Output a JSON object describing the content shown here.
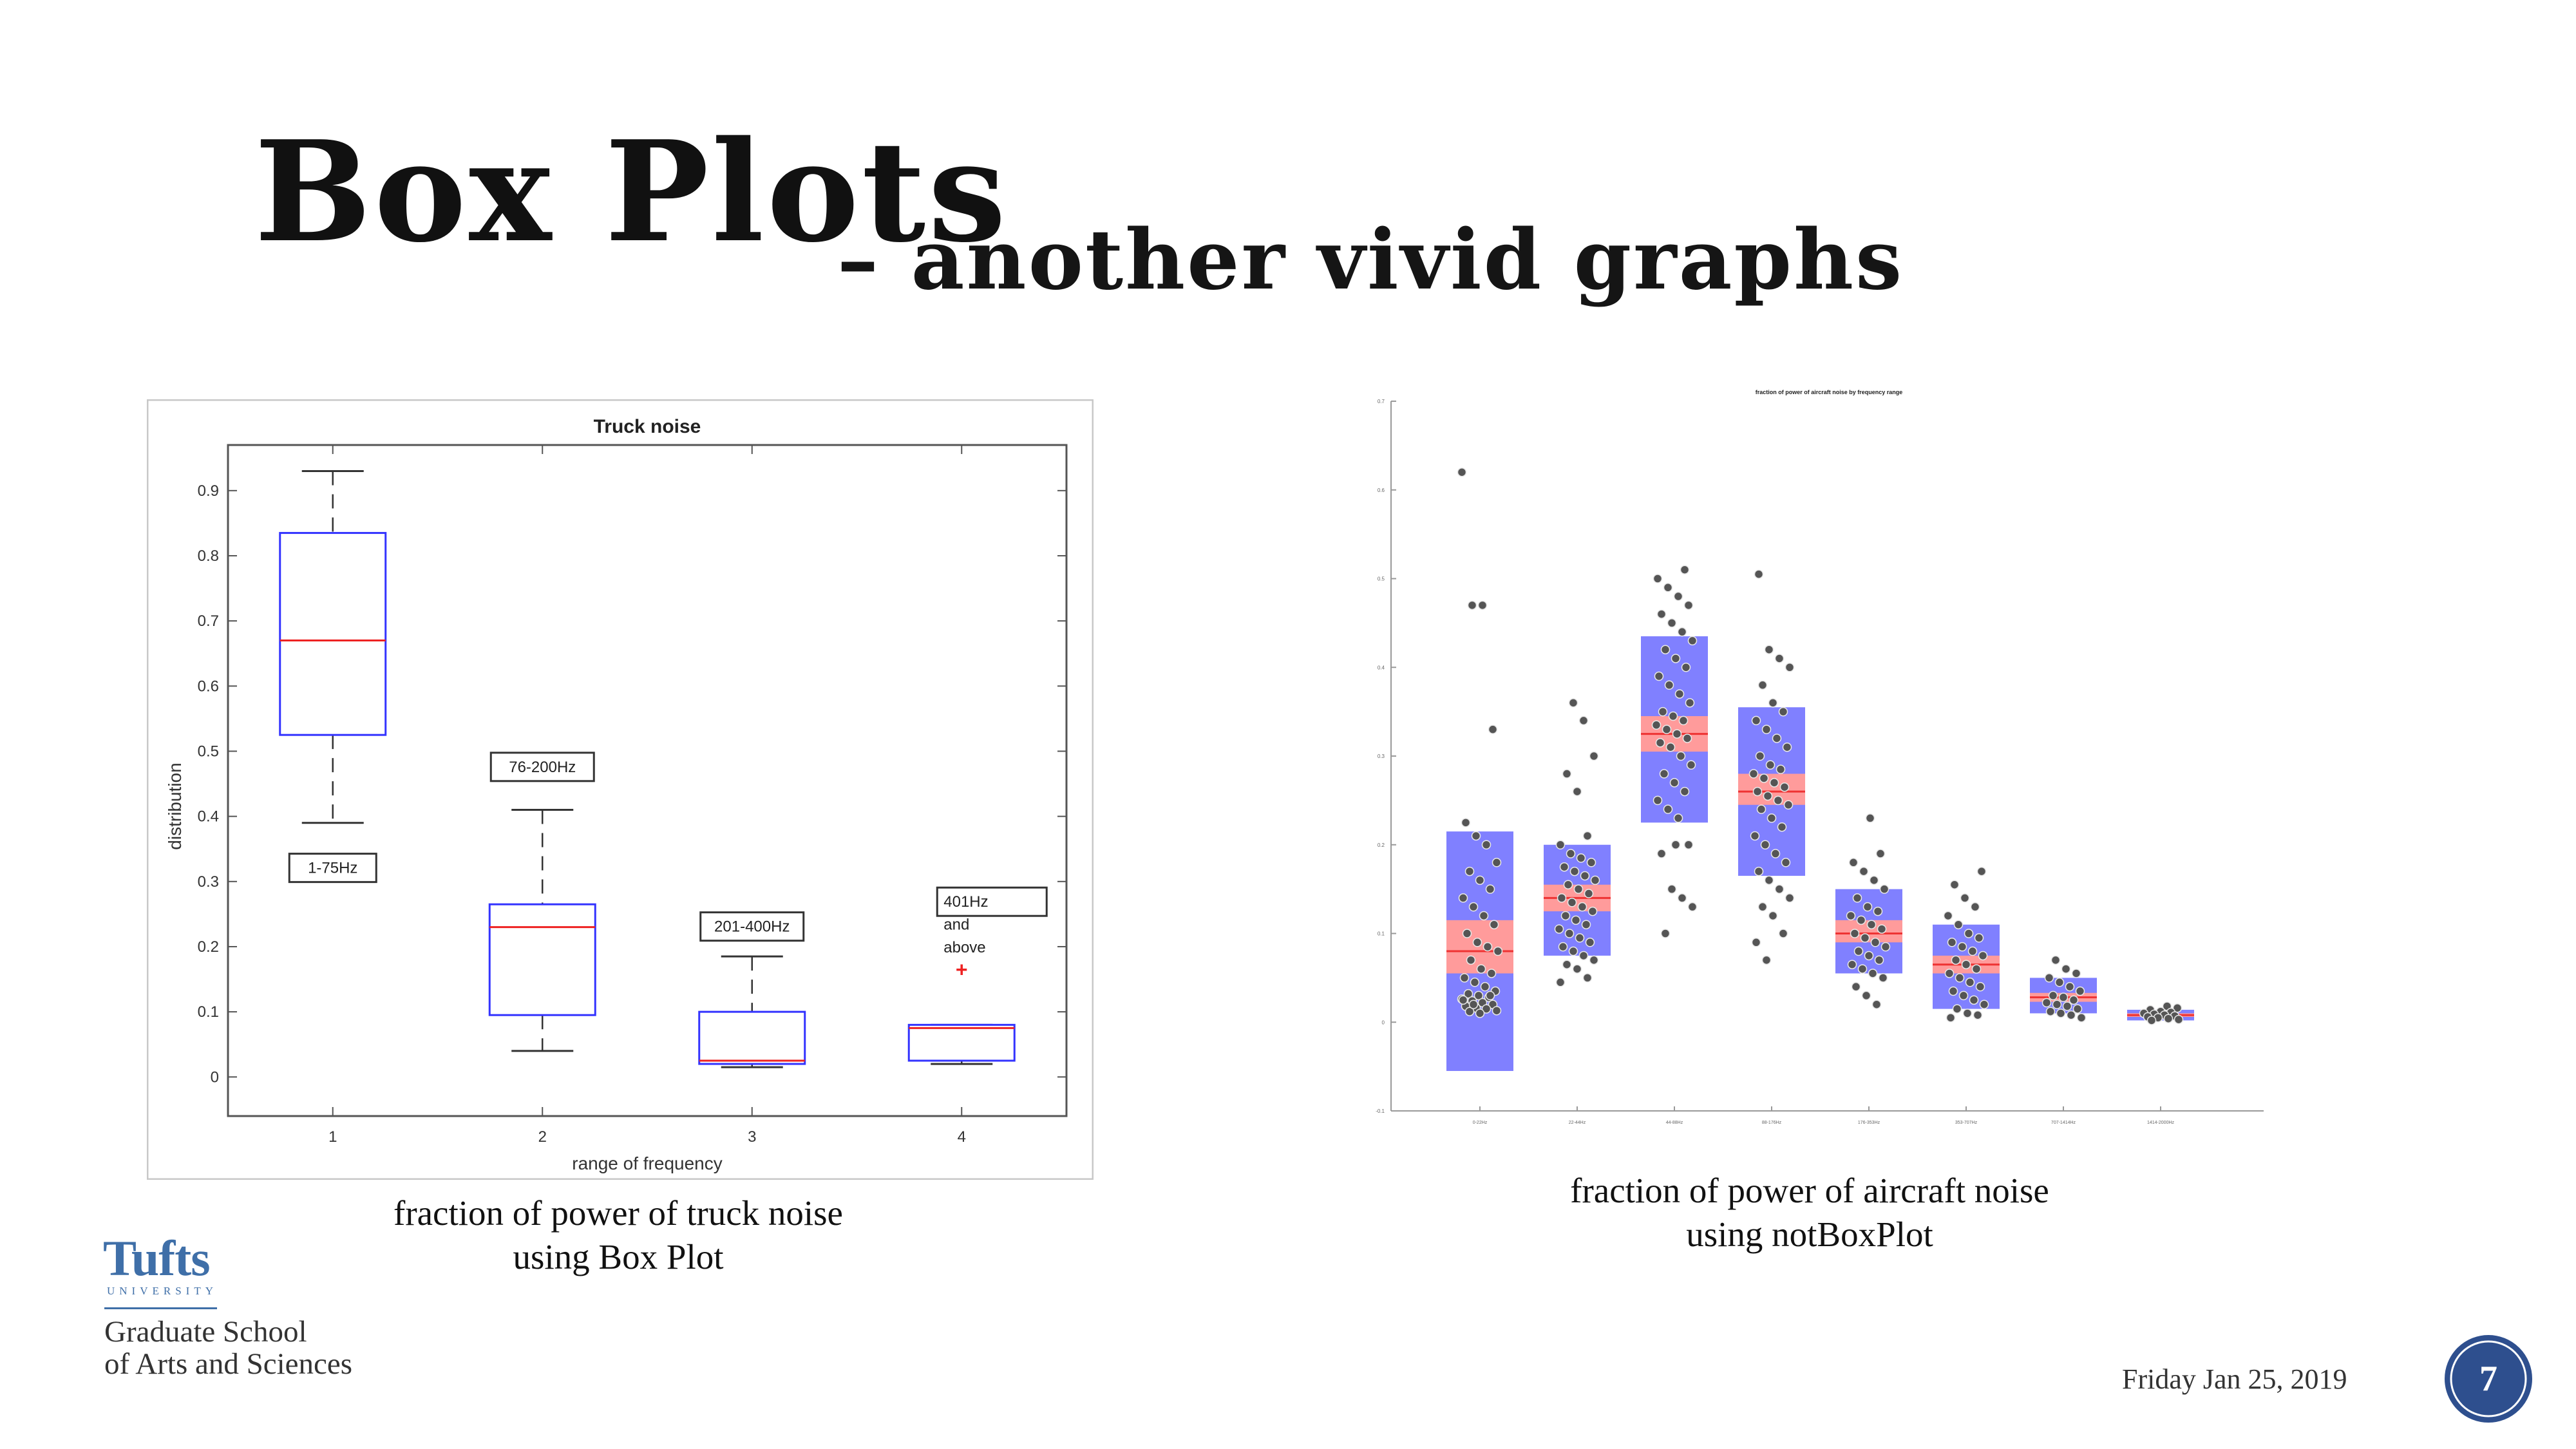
{
  "slide": {
    "title": "Box Plots",
    "subtitle": "– another vivid graphs",
    "footer_date": "Friday Jan 25, 2019",
    "page_number": "7",
    "logo_word": "Tufts",
    "logo_university": "UNIVERSITY",
    "school_line1": "Graduate School",
    "school_line2": "of Arts and Sciences",
    "left_caption_line1": "fraction of power of truck noise",
    "left_caption_line2": "using Box Plot",
    "right_caption_line1": "fraction of power of aircraft noise",
    "right_caption_line2": "using notBoxPlot"
  },
  "chart_data": [
    {
      "type": "box",
      "title": "Truck noise",
      "xlabel": "range of frequency",
      "ylabel": "distribution",
      "categories": [
        "1",
        "2",
        "3",
        "4"
      ],
      "ylim": [
        -0.06,
        0.97
      ],
      "yticks": [
        "0",
        "0.1",
        "0.2",
        "0.3",
        "0.4",
        "0.5",
        "0.6",
        "0.7",
        "0.8",
        "0.9"
      ],
      "grid": false,
      "colors": {
        "box": "#3333ff",
        "median": "#ee2222",
        "outlier": "#ee2222"
      },
      "boxes": [
        {
          "category": "1",
          "lower_whisker": 0.39,
          "q1": 0.525,
          "median": 0.67,
          "q3": 0.835,
          "upper_whisker": 0.93,
          "outliers": []
        },
        {
          "category": "2",
          "lower_whisker": 0.04,
          "q1": 0.095,
          "median": 0.23,
          "q3": 0.265,
          "upper_whisker": 0.41,
          "outliers": []
        },
        {
          "category": "3",
          "lower_whisker": 0.015,
          "q1": 0.02,
          "median": 0.025,
          "q3": 0.1,
          "upper_whisker": 0.185,
          "outliers": []
        },
        {
          "category": "4",
          "lower_whisker": 0.02,
          "q1": 0.025,
          "median": 0.075,
          "q3": 0.08,
          "upper_whisker": 0.08,
          "outliers": [
            0.165
          ]
        }
      ],
      "annotations": [
        {
          "text": "1-75Hz",
          "x": 1,
          "y": 0.315
        },
        {
          "text": "76-200Hz",
          "x": 2,
          "y": 0.47
        },
        {
          "text": "201-400Hz",
          "x": 3,
          "y": 0.225
        },
        {
          "text": "401Hz",
          "x": 4,
          "y": 0.265
        },
        {
          "text": "and",
          "x": 4,
          "y": 0.23
        },
        {
          "text": "above",
          "x": 4,
          "y": 0.195
        }
      ]
    },
    {
      "type": "scatter",
      "title": "fraction of power of aircraft noise by frequency range",
      "xlabel": "",
      "ylabel": "",
      "ylim": [
        -0.1,
        0.7
      ],
      "yticks": [
        "-0.1",
        "0",
        "0.1",
        "0.2",
        "0.3",
        "0.4",
        "0.5",
        "0.6",
        "0.7"
      ],
      "categories": [
        "0-22Hz",
        "22-44Hz",
        "44-88Hz",
        "88-176Hz",
        "176-353Hz",
        "353-707Hz",
        "707-1414Hz",
        "1414-2000Hz"
      ],
      "colors": {
        "sd_band": "#8080ff",
        "sem_band": "#ff9b9b",
        "mean": "#ee3333",
        "points": "#555555"
      },
      "groups": [
        {
          "mean": 0.08,
          "sem_low": 0.055,
          "sem_high": 0.115,
          "sd_low": -0.055,
          "sd_high": 0.215,
          "points": [
            0.62,
            0.47,
            0.47,
            0.33,
            0.225,
            0.21,
            0.2,
            0.18,
            0.17,
            0.16,
            0.15,
            0.14,
            0.13,
            0.12,
            0.11,
            0.1,
            0.09,
            0.085,
            0.08,
            0.07,
            0.06,
            0.055,
            0.05,
            0.045,
            0.04,
            0.035,
            0.032,
            0.03,
            0.028,
            0.026,
            0.024,
            0.022,
            0.02,
            0.018,
            0.016,
            0.015,
            0.013,
            0.012,
            0.01,
            0.03,
            0.025,
            0.02
          ]
        },
        {
          "mean": 0.14,
          "sem_low": 0.125,
          "sem_high": 0.155,
          "sd_low": 0.075,
          "sd_high": 0.2,
          "points": [
            0.36,
            0.34,
            0.3,
            0.28,
            0.26,
            0.21,
            0.2,
            0.19,
            0.185,
            0.18,
            0.175,
            0.17,
            0.165,
            0.16,
            0.155,
            0.15,
            0.145,
            0.14,
            0.135,
            0.13,
            0.125,
            0.12,
            0.115,
            0.11,
            0.105,
            0.1,
            0.095,
            0.09,
            0.085,
            0.08,
            0.075,
            0.07,
            0.065,
            0.06,
            0.05,
            0.045
          ]
        },
        {
          "mean": 0.325,
          "sem_low": 0.305,
          "sem_high": 0.345,
          "sd_low": 0.225,
          "sd_high": 0.435,
          "points": [
            0.51,
            0.5,
            0.49,
            0.48,
            0.47,
            0.46,
            0.45,
            0.44,
            0.43,
            0.42,
            0.41,
            0.4,
            0.39,
            0.38,
            0.37,
            0.36,
            0.35,
            0.345,
            0.34,
            0.335,
            0.33,
            0.325,
            0.32,
            0.315,
            0.31,
            0.3,
            0.29,
            0.28,
            0.27,
            0.26,
            0.25,
            0.24,
            0.23,
            0.2,
            0.19,
            0.15,
            0.14,
            0.13,
            0.1,
            0.2
          ]
        },
        {
          "mean": 0.26,
          "sem_low": 0.245,
          "sem_high": 0.28,
          "sd_low": 0.165,
          "sd_high": 0.355,
          "points": [
            0.505,
            0.42,
            0.41,
            0.4,
            0.38,
            0.36,
            0.35,
            0.34,
            0.33,
            0.32,
            0.31,
            0.3,
            0.29,
            0.285,
            0.28,
            0.275,
            0.27,
            0.265,
            0.26,
            0.255,
            0.25,
            0.245,
            0.24,
            0.23,
            0.22,
            0.21,
            0.2,
            0.19,
            0.18,
            0.17,
            0.16,
            0.15,
            0.14,
            0.13,
            0.12,
            0.1,
            0.09,
            0.07
          ]
        },
        {
          "mean": 0.1,
          "sem_low": 0.09,
          "sem_high": 0.115,
          "sd_low": 0.055,
          "sd_high": 0.15,
          "points": [
            0.23,
            0.19,
            0.18,
            0.17,
            0.16,
            0.15,
            0.14,
            0.13,
            0.125,
            0.12,
            0.115,
            0.11,
            0.105,
            0.1,
            0.095,
            0.09,
            0.085,
            0.08,
            0.075,
            0.07,
            0.065,
            0.06,
            0.055,
            0.05,
            0.04,
            0.03,
            0.02
          ]
        },
        {
          "mean": 0.065,
          "sem_low": 0.055,
          "sem_high": 0.075,
          "sd_low": 0.015,
          "sd_high": 0.11,
          "points": [
            0.17,
            0.155,
            0.14,
            0.13,
            0.12,
            0.11,
            0.1,
            0.095,
            0.09,
            0.085,
            0.08,
            0.075,
            0.07,
            0.065,
            0.06,
            0.055,
            0.05,
            0.045,
            0.04,
            0.035,
            0.03,
            0.025,
            0.02,
            0.015,
            0.01,
            0.008,
            0.005
          ]
        },
        {
          "mean": 0.028,
          "sem_low": 0.023,
          "sem_high": 0.033,
          "sd_low": 0.01,
          "sd_high": 0.05,
          "points": [
            0.07,
            0.06,
            0.055,
            0.05,
            0.045,
            0.04,
            0.035,
            0.03,
            0.028,
            0.025,
            0.022,
            0.02,
            0.018,
            0.015,
            0.012,
            0.01,
            0.008,
            0.005
          ]
        },
        {
          "mean": 0.008,
          "sem_low": 0.006,
          "sem_high": 0.01,
          "sd_low": 0.002,
          "sd_high": 0.014,
          "points": [
            0.018,
            0.016,
            0.014,
            0.012,
            0.011,
            0.01,
            0.009,
            0.008,
            0.007,
            0.006,
            0.005,
            0.004,
            0.003,
            0.002
          ]
        }
      ]
    }
  ]
}
